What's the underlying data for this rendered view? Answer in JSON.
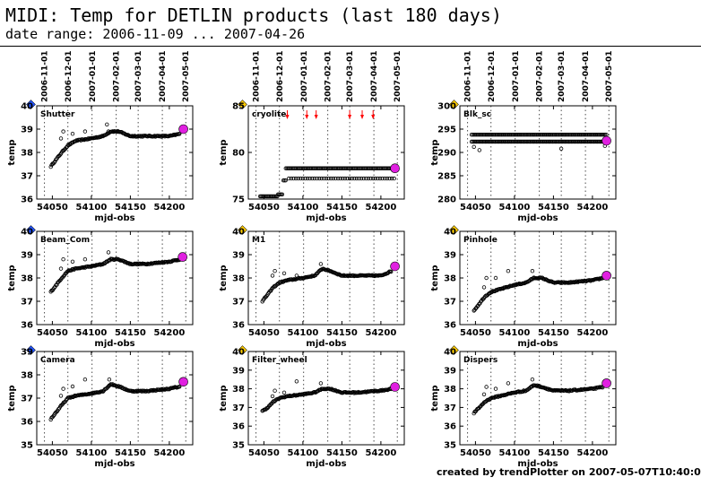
{
  "title": "MIDI: Temp for DETLIN products (last 180 days)",
  "subtitle": "date range: 2006-11-09 ... 2007-04-26",
  "footer": "created by trendPlotter on 2007-05-07T10:40:01",
  "chart_data": {
    "type": "scatter",
    "xlabel": "mjd-obs",
    "ylabel": "temp",
    "top_axis_dates": [
      "2006-11-01",
      "2006-12-01",
      "2007-01-01",
      "2007-02-01",
      "2007-03-01",
      "2007-04-01",
      "2007-05-01"
    ],
    "top_axis_mjd": [
      54040,
      54070,
      54101,
      54132,
      54160,
      54191,
      54221
    ],
    "xlim": [
      54030,
      54230
    ],
    "xticks": [
      54050,
      54100,
      54150,
      54200
    ],
    "latest_marker_color": "#e020e0",
    "arrow_color": "#ff0000",
    "panels": [
      {
        "name": "Shutter",
        "badge": "7",
        "badge_color": "#2255ff",
        "ylim": [
          36,
          40
        ],
        "yticks": [
          36,
          37,
          38,
          39,
          40
        ],
        "profile": [
          [
            54048,
            37.4
          ],
          [
            54055,
            37.7
          ],
          [
            54062,
            38.0
          ],
          [
            54070,
            38.3
          ],
          [
            54080,
            38.5
          ],
          [
            54100,
            38.6
          ],
          [
            54115,
            38.7
          ],
          [
            54125,
            38.9
          ],
          [
            54135,
            38.9
          ],
          [
            54150,
            38.7
          ],
          [
            54170,
            38.7
          ],
          [
            54200,
            38.7
          ],
          [
            54214,
            38.8
          ]
        ],
        "outliers": [
          [
            54061,
            38.6
          ],
          [
            54064,
            38.9
          ],
          [
            54076,
            38.8
          ],
          [
            54092,
            38.9
          ],
          [
            54120,
            39.2
          ],
          [
            54122,
            38.9
          ]
        ],
        "latest": [
          54218,
          39.0
        ]
      },
      {
        "name": "cryolite",
        "badge": "2",
        "badge_color": "#ffcc00",
        "ylim": [
          75,
          85
        ],
        "yticks": [
          75,
          80,
          85
        ],
        "steps": [
          [
            54045,
            54068,
            75.3
          ],
          [
            54068,
            54075,
            75.5
          ],
          [
            54075,
            54078,
            77.0
          ],
          [
            54078,
            54218,
            78.3
          ]
        ],
        "lower": [
          [
            54082,
            54218,
            77.2
          ]
        ],
        "arrows": [
          54080,
          54105,
          54117,
          54160,
          54176,
          54190
        ],
        "latest": [
          54218,
          78.3
        ]
      },
      {
        "name": "Blk_sc",
        "badge": "2",
        "badge_color": "#ffcc00",
        "ylim": [
          280,
          300
        ],
        "yticks": [
          280,
          285,
          290,
          295,
          300
        ],
        "bands": [
          [
            54045,
            54218,
            292.3
          ],
          [
            54045,
            54218,
            293.8
          ]
        ],
        "outliers": [
          [
            54048,
            291.2
          ],
          [
            54055,
            290.5
          ],
          [
            54160,
            290.8
          ],
          [
            54216,
            291.4
          ]
        ],
        "latest": [
          54218,
          292.5
        ]
      },
      {
        "name": "Beam_Com",
        "badge": "2",
        "badge_color": "#2255ff",
        "ylim": [
          36,
          40
        ],
        "yticks": [
          36,
          37,
          38,
          39,
          40
        ],
        "profile": [
          [
            54048,
            37.4
          ],
          [
            54055,
            37.7
          ],
          [
            54062,
            38.0
          ],
          [
            54070,
            38.3
          ],
          [
            54080,
            38.4
          ],
          [
            54100,
            38.5
          ],
          [
            54115,
            38.6
          ],
          [
            54125,
            38.8
          ],
          [
            54135,
            38.8
          ],
          [
            54150,
            38.6
          ],
          [
            54170,
            38.6
          ],
          [
            54200,
            38.7
          ],
          [
            54214,
            38.8
          ]
        ],
        "outliers": [
          [
            54061,
            38.4
          ],
          [
            54064,
            38.8
          ],
          [
            54076,
            38.7
          ],
          [
            54092,
            38.8
          ],
          [
            54122,
            39.1
          ]
        ],
        "latest": [
          54217,
          38.9
        ]
      },
      {
        "name": "M1",
        "badge": "2",
        "badge_color": "#ffcc00",
        "ylim": [
          36,
          40
        ],
        "yticks": [
          36,
          37,
          38,
          39,
          40
        ],
        "profile": [
          [
            54048,
            37.0
          ],
          [
            54055,
            37.3
          ],
          [
            54062,
            37.6
          ],
          [
            54070,
            37.8
          ],
          [
            54080,
            37.9
          ],
          [
            54100,
            38.0
          ],
          [
            54115,
            38.1
          ],
          [
            54125,
            38.4
          ],
          [
            54135,
            38.3
          ],
          [
            54150,
            38.1
          ],
          [
            54170,
            38.1
          ],
          [
            54200,
            38.1
          ],
          [
            54214,
            38.3
          ]
        ],
        "outliers": [
          [
            54061,
            38.1
          ],
          [
            54064,
            38.3
          ],
          [
            54076,
            38.2
          ],
          [
            54092,
            38.1
          ],
          [
            54123,
            38.6
          ]
        ],
        "latest": [
          54218,
          38.5
        ]
      },
      {
        "name": "Pinhole",
        "badge": "2",
        "badge_color": "#ffcc00",
        "ylim": [
          36,
          40
        ],
        "yticks": [
          36,
          37,
          38,
          39,
          40
        ],
        "profile": [
          [
            54048,
            36.6
          ],
          [
            54055,
            36.9
          ],
          [
            54062,
            37.2
          ],
          [
            54070,
            37.4
          ],
          [
            54080,
            37.5
          ],
          [
            54100,
            37.7
          ],
          [
            54115,
            37.8
          ],
          [
            54125,
            38.0
          ],
          [
            54135,
            38.0
          ],
          [
            54150,
            37.8
          ],
          [
            54170,
            37.8
          ],
          [
            54200,
            37.9
          ],
          [
            54214,
            38.0
          ]
        ],
        "outliers": [
          [
            54061,
            37.6
          ],
          [
            54064,
            38.0
          ],
          [
            54076,
            38.0
          ],
          [
            54092,
            38.3
          ],
          [
            54123,
            38.3
          ]
        ],
        "latest": [
          54218,
          38.1
        ]
      },
      {
        "name": "Camera",
        "badge": "1",
        "badge_color": "#2255ff",
        "ylim": [
          35,
          39
        ],
        "yticks": [
          35,
          36,
          37,
          38,
          39
        ],
        "profile": [
          [
            54048,
            36.1
          ],
          [
            54055,
            36.4
          ],
          [
            54062,
            36.7
          ],
          [
            54070,
            37.0
          ],
          [
            54080,
            37.1
          ],
          [
            54100,
            37.2
          ],
          [
            54115,
            37.3
          ],
          [
            54125,
            37.6
          ],
          [
            54135,
            37.5
          ],
          [
            54150,
            37.3
          ],
          [
            54170,
            37.3
          ],
          [
            54200,
            37.4
          ],
          [
            54214,
            37.5
          ]
        ],
        "outliers": [
          [
            54061,
            37.1
          ],
          [
            54064,
            37.4
          ],
          [
            54076,
            37.5
          ],
          [
            54092,
            37.8
          ],
          [
            54123,
            37.8
          ]
        ],
        "latest": [
          54218,
          37.7
        ]
      },
      {
        "name": "Filter_wheel",
        "badge": "2",
        "badge_color": "#ffcc00",
        "ylim": [
          35,
          40
        ],
        "yticks": [
          35,
          36,
          37,
          38,
          39,
          40
        ],
        "profile": [
          [
            54048,
            36.8
          ],
          [
            54055,
            37.0
          ],
          [
            54062,
            37.3
          ],
          [
            54070,
            37.5
          ],
          [
            54080,
            37.6
          ],
          [
            54100,
            37.7
          ],
          [
            54115,
            37.8
          ],
          [
            54125,
            38.0
          ],
          [
            54135,
            38.0
          ],
          [
            54150,
            37.8
          ],
          [
            54170,
            37.8
          ],
          [
            54200,
            37.9
          ],
          [
            54214,
            38.0
          ]
        ],
        "outliers": [
          [
            54061,
            37.6
          ],
          [
            54064,
            37.9
          ],
          [
            54076,
            37.8
          ],
          [
            54092,
            38.4
          ],
          [
            54123,
            38.3
          ]
        ],
        "latest": [
          54218,
          38.1
        ]
      },
      {
        "name": "Dispers",
        "badge": "2",
        "badge_color": "#ffcc00",
        "ylim": [
          35,
          40
        ],
        "yticks": [
          35,
          36,
          37,
          38,
          39,
          40
        ],
        "profile": [
          [
            54048,
            36.7
          ],
          [
            54055,
            37.0
          ],
          [
            54062,
            37.3
          ],
          [
            54070,
            37.5
          ],
          [
            54080,
            37.6
          ],
          [
            54100,
            37.8
          ],
          [
            54115,
            37.9
          ],
          [
            54125,
            38.2
          ],
          [
            54135,
            38.1
          ],
          [
            54150,
            37.9
          ],
          [
            54170,
            37.9
          ],
          [
            54200,
            38.0
          ],
          [
            54214,
            38.1
          ]
        ],
        "outliers": [
          [
            54061,
            37.7
          ],
          [
            54064,
            38.1
          ],
          [
            54076,
            38.0
          ],
          [
            54092,
            38.3
          ],
          [
            54123,
            38.5
          ]
        ],
        "latest": [
          54218,
          38.3
        ]
      }
    ]
  }
}
